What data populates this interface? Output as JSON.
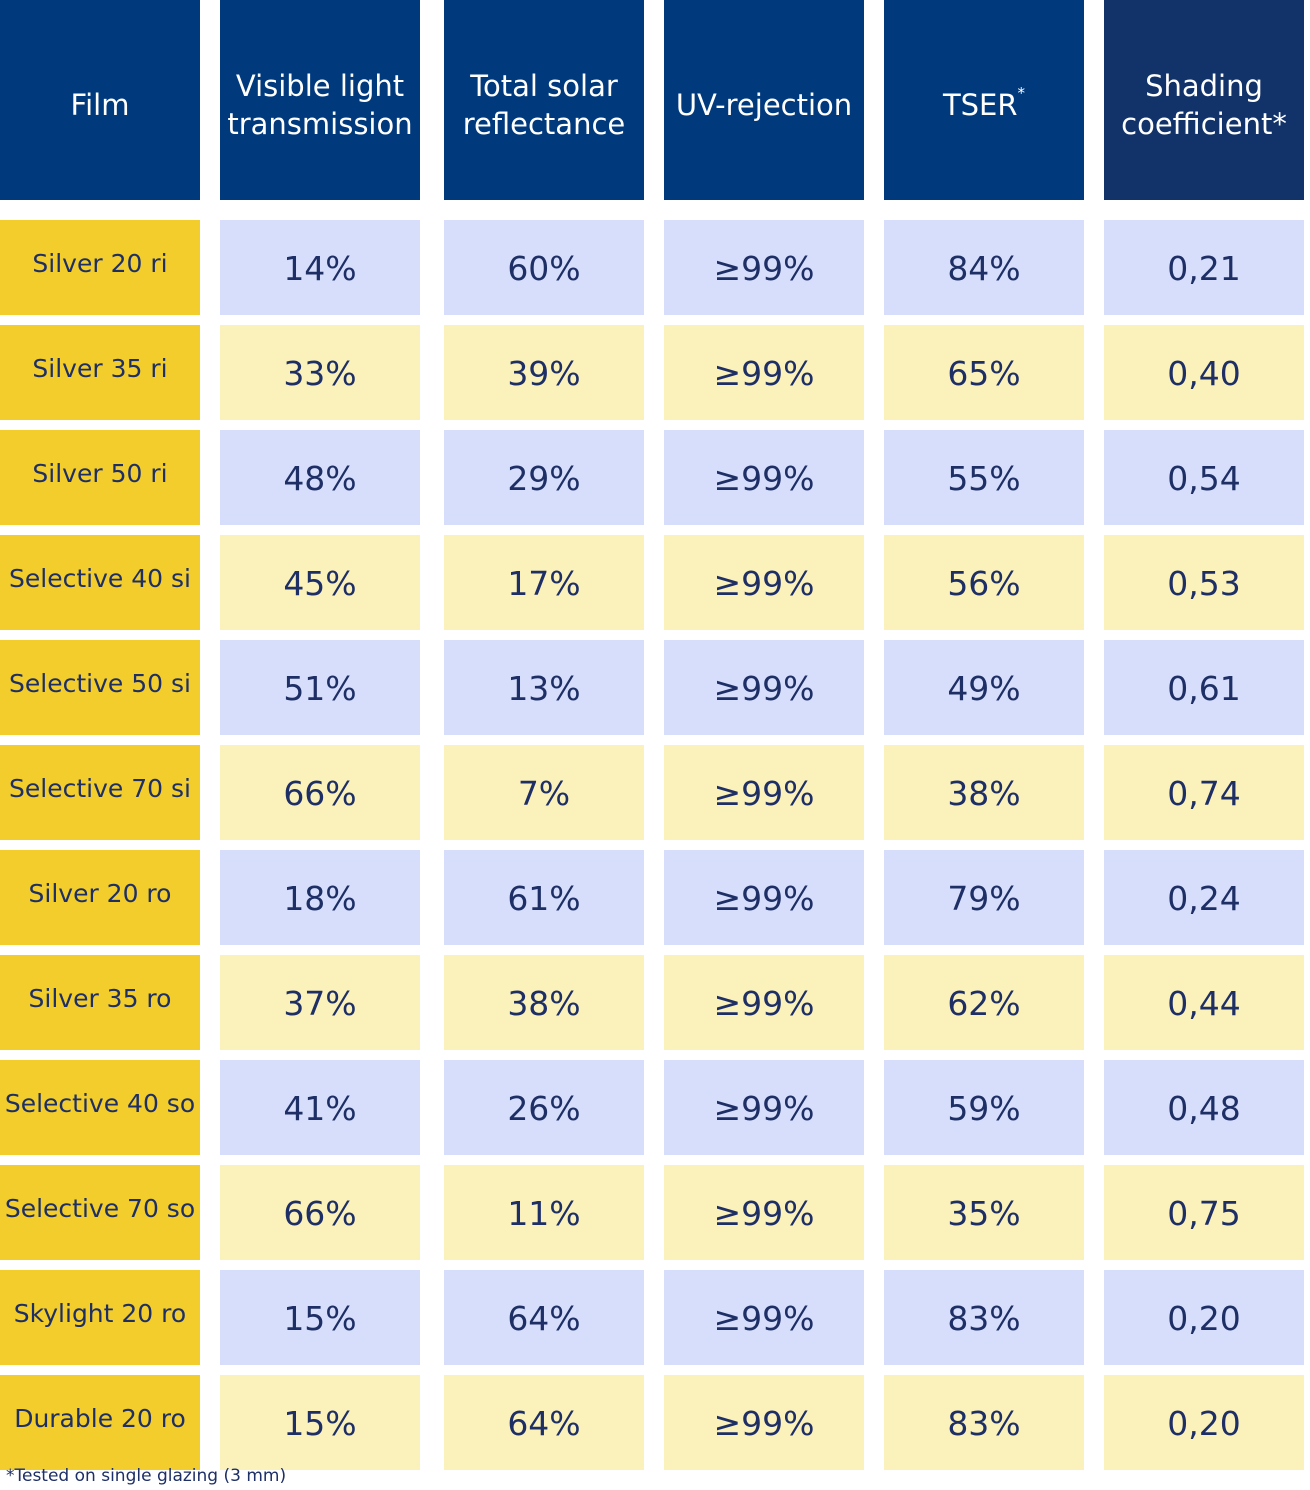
{
  "headers": [
    {
      "text": "Film",
      "sup": ""
    },
    {
      "text": "Visible light transmission",
      "sup": ""
    },
    {
      "text": "Total solar reflectance",
      "sup": ""
    },
    {
      "text": "UV-rejection",
      "sup": ""
    },
    {
      "text": "TSER",
      "sup": "*"
    },
    {
      "text": "Shading coefficient*",
      "sup": ""
    }
  ],
  "rows": [
    {
      "film": "Silver 20 ri",
      "values": [
        "14%",
        "60%",
        "≥99%",
        "84%",
        "0,21"
      ]
    },
    {
      "film": "Silver 35 ri",
      "values": [
        "33%",
        "39%",
        "≥99%",
        "65%",
        "0,40"
      ]
    },
    {
      "film": "Silver 50 ri",
      "values": [
        "48%",
        "29%",
        "≥99%",
        "55%",
        "0,54"
      ]
    },
    {
      "film": "Selective 40 si",
      "values": [
        "45%",
        "17%",
        "≥99%",
        "56%",
        "0,53"
      ]
    },
    {
      "film": "Selective 50 si",
      "values": [
        "51%",
        "13%",
        "≥99%",
        "49%",
        "0,61"
      ]
    },
    {
      "film": "Selective 70 si",
      "values": [
        "66%",
        "7%",
        "≥99%",
        "38%",
        "0,74"
      ]
    },
    {
      "film": "Silver 20 ro",
      "values": [
        "18%",
        "61%",
        "≥99%",
        "79%",
        "0,24"
      ]
    },
    {
      "film": "Silver 35 ro",
      "values": [
        "37%",
        "38%",
        "≥99%",
        "62%",
        "0,44"
      ]
    },
    {
      "film": "Selective 40 so",
      "values": [
        "41%",
        "26%",
        "≥99%",
        "59%",
        "0,48"
      ]
    },
    {
      "film": "Selective 70 so",
      "values": [
        "66%",
        "11%",
        "≥99%",
        "35%",
        "0,75"
      ]
    },
    {
      "film": "Skylight 20 ro",
      "values": [
        "15%",
        "64%",
        "≥99%",
        "83%",
        "0,20"
      ]
    },
    {
      "film": "Durable 20 ro",
      "values": [
        "15%",
        "64%",
        "≥99%",
        "83%",
        "0,20"
      ]
    }
  ],
  "footnote": "*Tested on single glazing (3 mm)",
  "colors": {
    "header_bg": "#003a7d",
    "film_bg": "#f2cd2b",
    "row_blue": "#d6defb",
    "row_yellow": "#fbf1bb",
    "text": "#1e2f66"
  }
}
